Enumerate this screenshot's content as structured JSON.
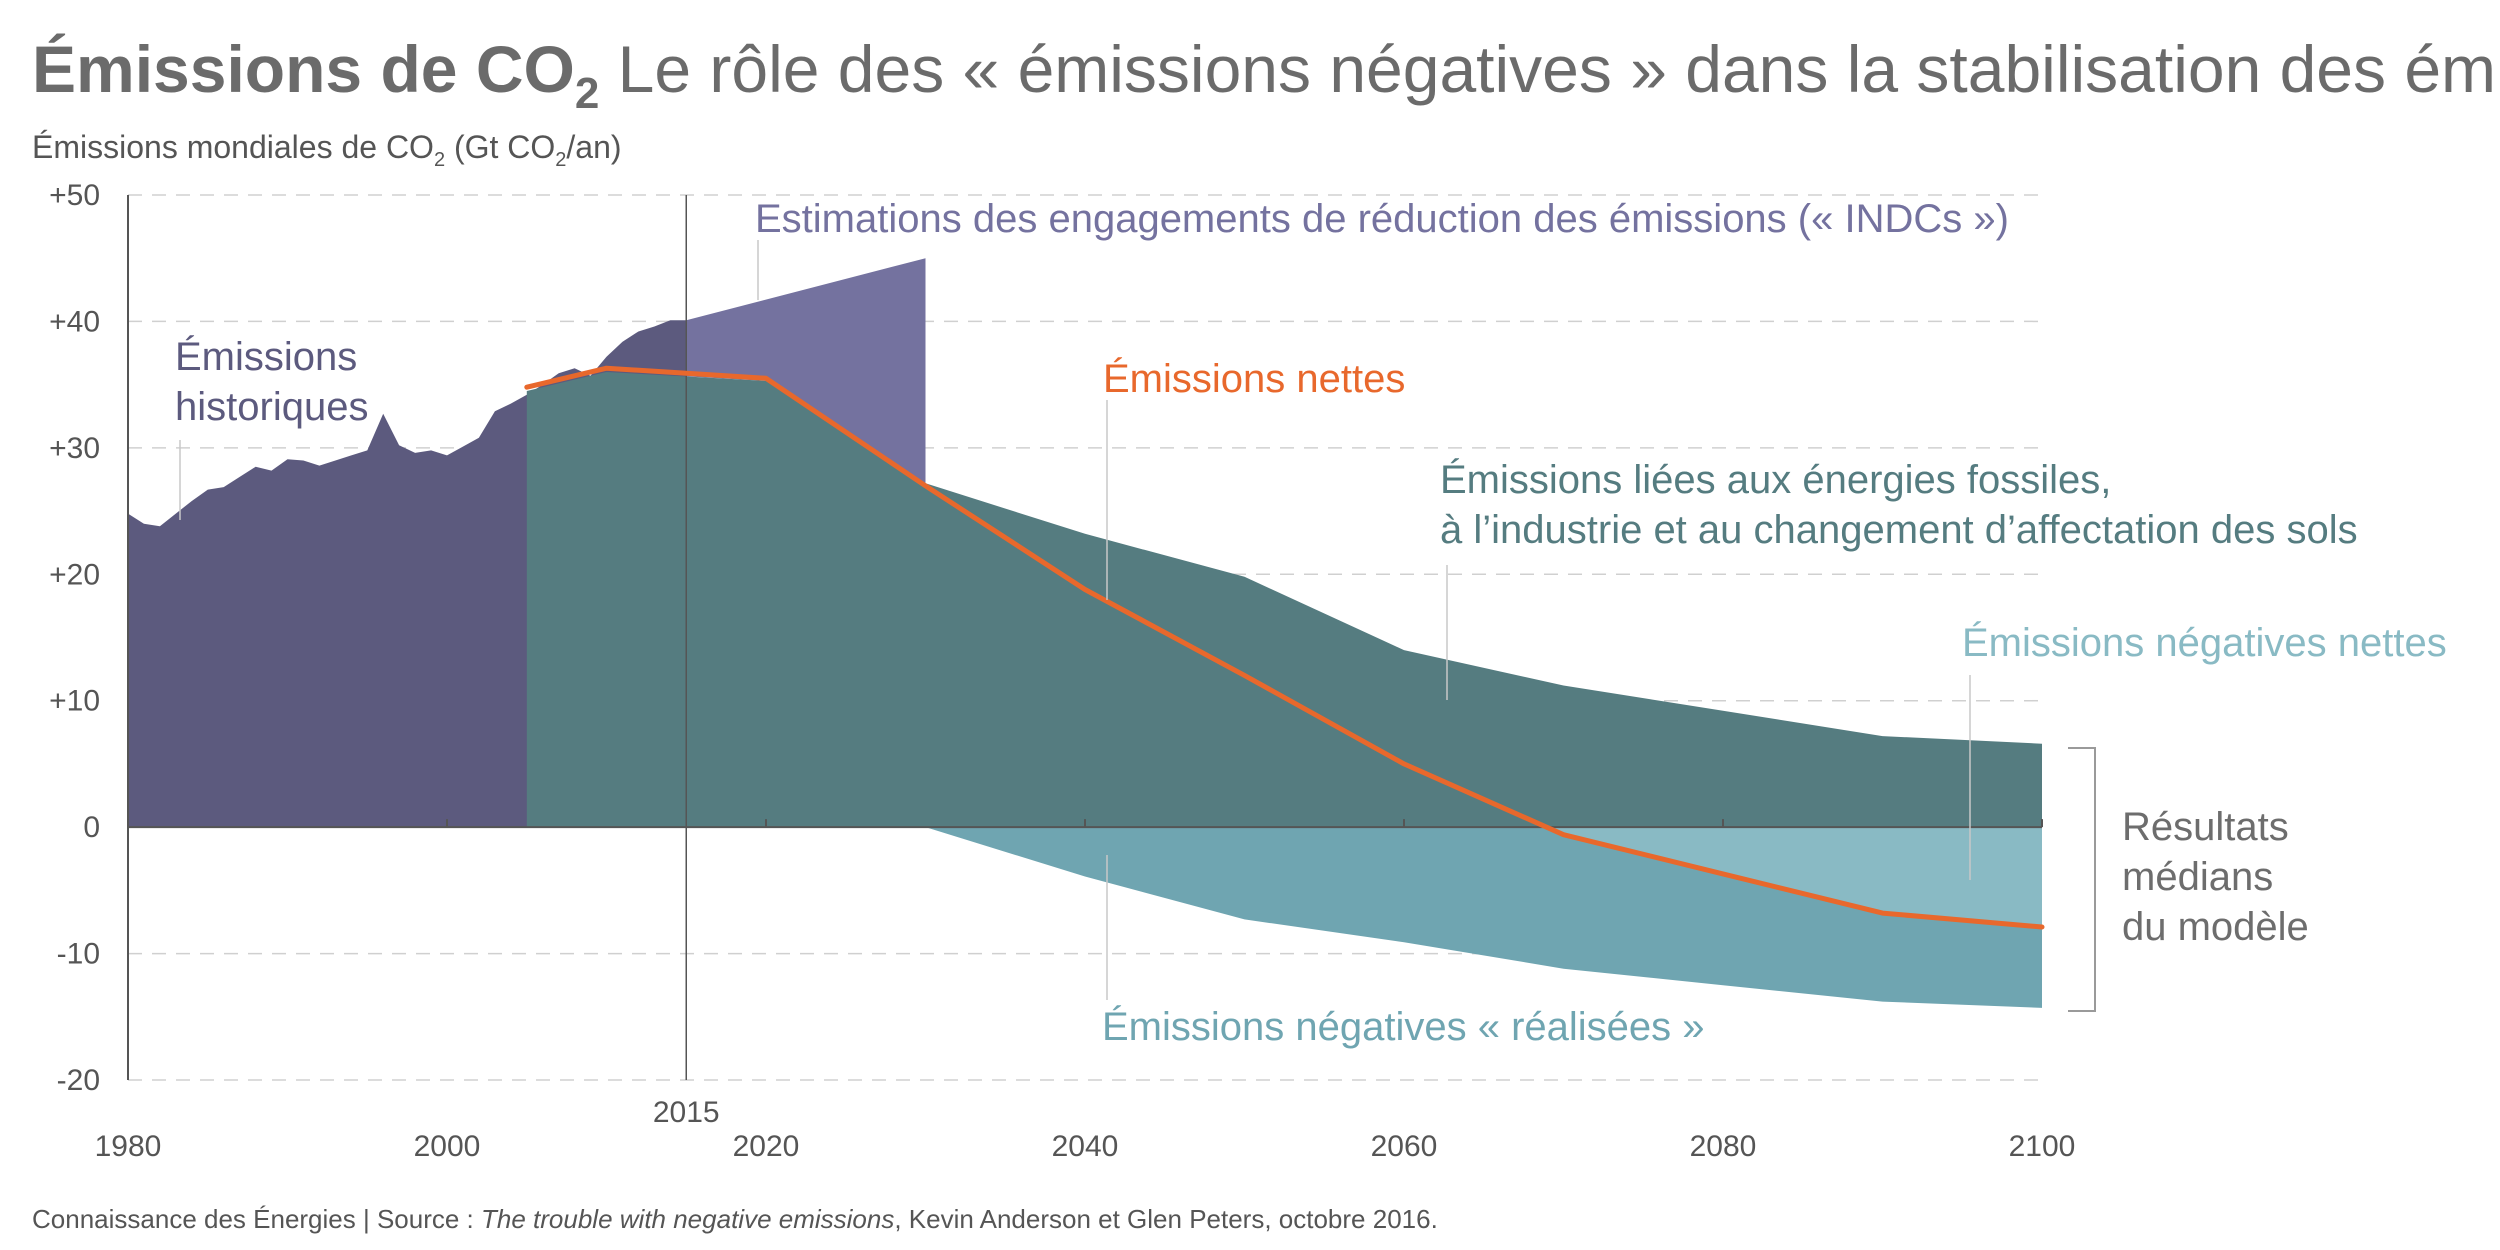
{
  "header": {
    "title_bold": "Émissions de CO",
    "title_sub": "2",
    "title_rest": " Le rôle des « émissions négatives » dans la stabilisation des émissions",
    "ylabel_pre": "Émissions mondiales de CO",
    "ylabel_sub1": "2",
    "ylabel_mid": " (Gt CO",
    "ylabel_sub2": "2",
    "ylabel_post": "/an)"
  },
  "footer": {
    "source_pre": "Connaissance des Énergies | Source : ",
    "source_italic": "The trouble with negative emissions",
    "source_post": ", Kevin Anderson et Glen Peters, octobre 2016."
  },
  "colors": {
    "historical": "#5c5a7e",
    "indc": "#74729f",
    "fossil": "#557c80",
    "negative_realized": "#6fa5b1",
    "negative_net": "#89bac4",
    "net_line": "#e8682c",
    "label_indc": "#74729f",
    "label_fossil": "#557c80",
    "label_neg": "#6fa5b1",
    "label_neg_net": "#89bac4",
    "label_median": "#6d6d6d"
  },
  "chart_data": {
    "type": "area",
    "xlim": [
      1980,
      2100
    ],
    "ylim": [
      -20,
      50
    ],
    "x_ticks": [
      "1980",
      "2000",
      "2020",
      "2040",
      "2060",
      "2080",
      "2100"
    ],
    "x_tick_values": [
      1980,
      2000,
      2020,
      2040,
      2060,
      2080,
      2100
    ],
    "extra_x_tick": {
      "label": "2015",
      "value": 2015
    },
    "y_ticks": [
      "+50",
      "+40",
      "+30",
      "+20",
      "+10",
      "0",
      "-10",
      "-20"
    ],
    "y_tick_values": [
      50,
      40,
      30,
      20,
      10,
      0,
      -10,
      -20
    ],
    "series": [
      {
        "name": "Émissions historiques",
        "kind": "area",
        "color_key": "historical",
        "x": [
          1980,
          1981,
          1982,
          1983,
          1984,
          1985,
          1986,
          1987,
          1988,
          1989,
          1990,
          1991,
          1992,
          1993,
          1994,
          1995,
          1996,
          1997,
          1998,
          1999,
          2000,
          2001,
          2002,
          2003,
          2004,
          2005,
          2006,
          2007,
          2008,
          2009,
          2010,
          2011,
          2012,
          2013,
          2014,
          2015
        ],
        "y": [
          24.8,
          24.0,
          23.8,
          24.8,
          25.8,
          26.7,
          26.9,
          27.7,
          28.5,
          28.2,
          29.1,
          29.0,
          28.6,
          29.0,
          29.4,
          29.8,
          32.7,
          30.2,
          29.6,
          29.8,
          29.4,
          30.1,
          30.8,
          32.9,
          33.5,
          34.2,
          35.0,
          35.9,
          36.3,
          35.7,
          37.2,
          38.4,
          39.2,
          39.6,
          40.1,
          40.1
        ]
      },
      {
        "name": "Estimations des engagements de réduction des émissions (« INDCs »)",
        "kind": "area",
        "color_key": "indc",
        "x": [
          2015,
          2030
        ],
        "y": [
          40.1,
          45
        ]
      },
      {
        "name": "Émissions liées aux énergies fossiles, à l’industrie et au changement d’affectation des sols",
        "kind": "area",
        "color_key": "fossil",
        "x": [
          2005,
          2010,
          2020,
          2030,
          2040,
          2050,
          2060,
          2070,
          2080,
          2090,
          2100
        ],
        "y": [
          34.5,
          36.0,
          35.3,
          27.2,
          23.2,
          19.8,
          14.0,
          11.2,
          9.2,
          7.2,
          6.6
        ]
      },
      {
        "name": "Émissions négatives « réalisées »",
        "kind": "area",
        "color_key": "negative_realized",
        "x": [
          2030,
          2040,
          2050,
          2060,
          2070,
          2080,
          2090,
          2100
        ],
        "y": [
          0,
          -3.9,
          -7.3,
          -9.1,
          -11.2,
          -12.5,
          -13.8,
          -14.3
        ]
      },
      {
        "name": "Émissions nettes",
        "kind": "line",
        "color_key": "net_line",
        "x": [
          2005,
          2010,
          2015,
          2020,
          2030,
          2040,
          2050,
          2060,
          2070,
          2080,
          2090,
          2100
        ],
        "y": [
          34.8,
          36.3,
          35.9,
          35.5,
          27.0,
          18.8,
          12.0,
          5.0,
          -0.6,
          -3.7,
          -6.8,
          -7.9
        ]
      }
    ]
  },
  "labels": {
    "historical_1": "Émissions",
    "historical_2": "historiques",
    "indc": "Estimations des engagements de réduction des émissions (« INDCs »)",
    "net": "Émissions nettes",
    "fossil_1": "Émissions liées aux énergies fossiles,",
    "fossil_2": "à l’industrie et au changement d’affectation des sols",
    "neg_net": "Émissions négatives nettes",
    "neg_realized": "Émissions négatives « réalisées »",
    "median_1": "Résultats",
    "median_2": "médians",
    "median_3": "du modèle"
  }
}
